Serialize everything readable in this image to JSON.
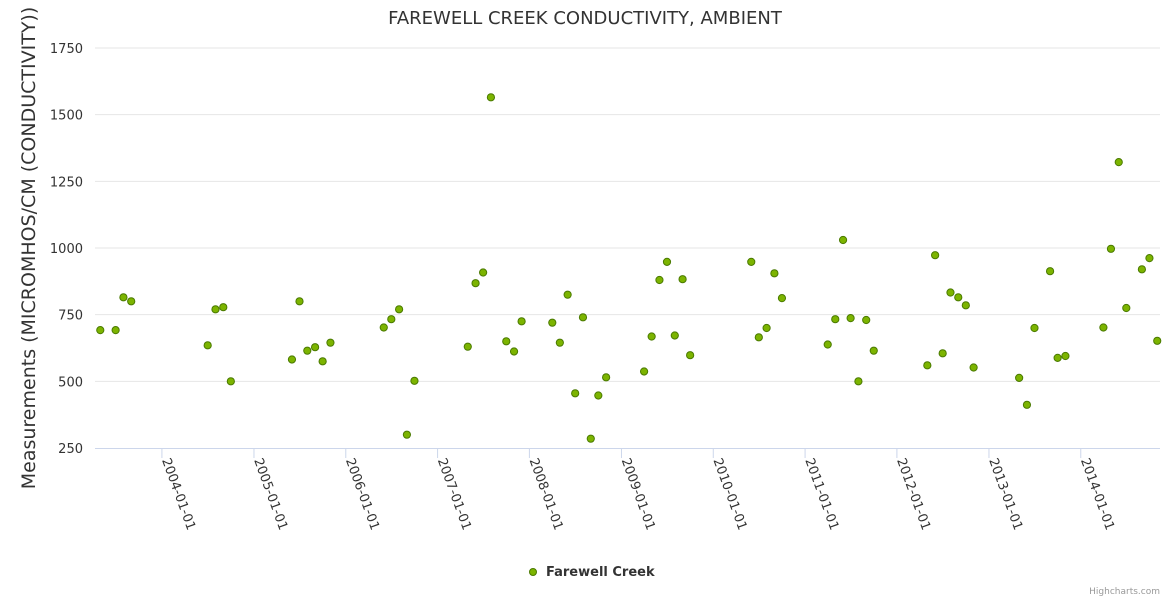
{
  "colors": {
    "marker_fill": "#7cb400",
    "marker_stroke": "#4a7a00",
    "grid": "#e6e6e6",
    "axis": "#ccd6eb",
    "text": "#333333"
  },
  "credits": "Highcharts.com",
  "chart_data": {
    "type": "scatter",
    "title": "FAREWELL CREEK CONDUCTIVITY, AMBIENT",
    "ylabel": "Measurements (MICROMHOS/CM (CONDUCTIVITY))",
    "xlabel": "",
    "ylim": [
      250,
      1750
    ],
    "yticks": [
      250,
      500,
      750,
      1000,
      1250,
      1500,
      1750
    ],
    "xlim": [
      "2003-04-10",
      "2014-11-12"
    ],
    "xticks": [
      "2004-01-01",
      "2005-01-01",
      "2006-01-01",
      "2007-01-01",
      "2008-01-01",
      "2009-01-01",
      "2010-01-01",
      "2011-01-01",
      "2012-01-01",
      "2013-01-01",
      "2014-01-01"
    ],
    "grid": true,
    "legend_position": "bottom-center",
    "series": [
      {
        "name": "Farewell Creek",
        "points": [
          [
            "2003-05-01",
            692
          ],
          [
            "2003-07-01",
            692
          ],
          [
            "2003-08-01",
            815
          ],
          [
            "2003-09-01",
            800
          ],
          [
            "2004-07-01",
            635
          ],
          [
            "2004-08-01",
            770
          ],
          [
            "2004-09-01",
            778
          ],
          [
            "2004-10-01",
            500
          ],
          [
            "2005-06-01",
            582
          ],
          [
            "2005-07-01",
            800
          ],
          [
            "2005-08-01",
            615
          ],
          [
            "2005-09-01",
            628
          ],
          [
            "2005-10-01",
            575
          ],
          [
            "2005-11-01",
            645
          ],
          [
            "2006-06-01",
            702
          ],
          [
            "2006-07-01",
            733
          ],
          [
            "2006-08-01",
            770
          ],
          [
            "2006-09-01",
            300
          ],
          [
            "2006-10-01",
            502
          ],
          [
            "2007-05-01",
            630
          ],
          [
            "2007-06-01",
            868
          ],
          [
            "2007-07-01",
            908
          ],
          [
            "2007-08-01",
            1565
          ],
          [
            "2007-10-01",
            650
          ],
          [
            "2007-11-01",
            612
          ],
          [
            "2007-12-01",
            725
          ],
          [
            "2008-04-01",
            720
          ],
          [
            "2008-05-01",
            645
          ],
          [
            "2008-06-01",
            825
          ],
          [
            "2008-07-01",
            455
          ],
          [
            "2008-08-01",
            740
          ],
          [
            "2008-09-01",
            285
          ],
          [
            "2008-10-01",
            447
          ],
          [
            "2008-11-01",
            515
          ],
          [
            "2009-04-01",
            537
          ],
          [
            "2009-05-01",
            668
          ],
          [
            "2009-06-01",
            880
          ],
          [
            "2009-07-01",
            948
          ],
          [
            "2009-08-01",
            672
          ],
          [
            "2009-09-01",
            883
          ],
          [
            "2009-10-01",
            598
          ],
          [
            "2010-06-01",
            948
          ],
          [
            "2010-07-01",
            665
          ],
          [
            "2010-08-01",
            700
          ],
          [
            "2010-09-01",
            905
          ],
          [
            "2010-10-01",
            812
          ],
          [
            "2011-04-01",
            638
          ],
          [
            "2011-05-01",
            733
          ],
          [
            "2011-06-01",
            1030
          ],
          [
            "2011-07-01",
            737
          ],
          [
            "2011-08-01",
            500
          ],
          [
            "2011-09-01",
            730
          ],
          [
            "2011-10-01",
            615
          ],
          [
            "2012-05-01",
            560
          ],
          [
            "2012-06-01",
            973
          ],
          [
            "2012-07-01",
            605
          ],
          [
            "2012-08-01",
            833
          ],
          [
            "2012-09-01",
            815
          ],
          [
            "2012-10-01",
            785
          ],
          [
            "2012-11-01",
            552
          ],
          [
            "2013-05-01",
            513
          ],
          [
            "2013-06-01",
            412
          ],
          [
            "2013-07-01",
            700
          ],
          [
            "2013-09-01",
            913
          ],
          [
            "2013-10-01",
            588
          ],
          [
            "2013-11-01",
            595
          ],
          [
            "2014-04-01",
            702
          ],
          [
            "2014-05-01",
            997
          ],
          [
            "2014-06-01",
            1322
          ],
          [
            "2014-07-01",
            775
          ],
          [
            "2014-09-01",
            920
          ],
          [
            "2014-10-01",
            962
          ],
          [
            "2014-11-01",
            652
          ]
        ]
      }
    ]
  }
}
